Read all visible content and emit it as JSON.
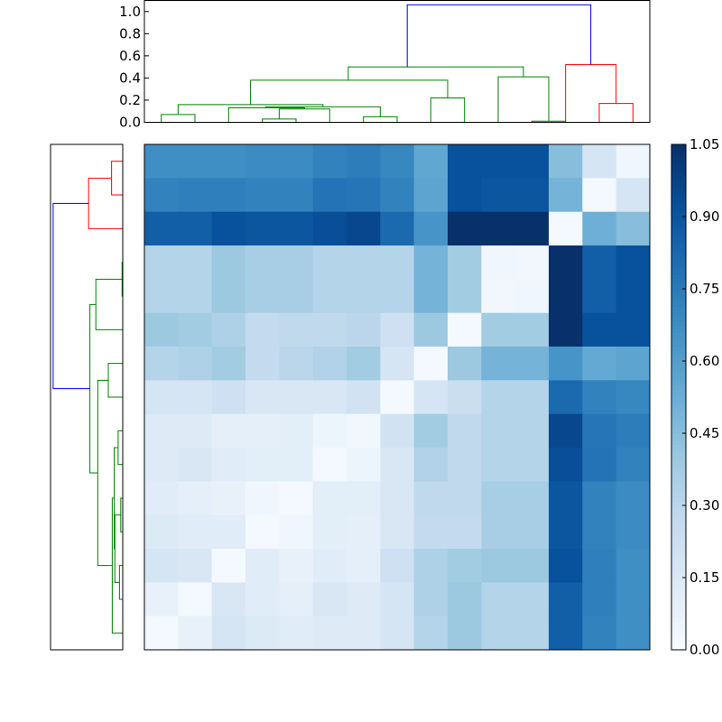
{
  "chart_data": [
    {
      "type": "dendrogram",
      "name": "top-dendrogram",
      "orientation": "top",
      "ylim": [
        0,
        1.1
      ],
      "y_ticks": [
        0.0,
        0.2,
        0.4,
        0.6,
        0.8,
        1.0
      ],
      "y_tick_labels": [
        "0.0",
        "0.2",
        "0.4",
        "0.6",
        "0.8",
        "1.0"
      ],
      "leaf_count": 15,
      "colors": {
        "green": "#008000",
        "red": "#ff0000",
        "blue": "#0000ff"
      },
      "links": [
        {
          "x": [
            0.5,
            0.5,
            1.5,
            1.5
          ],
          "y": [
            0,
            0.07,
            0.07,
            0
          ],
          "color": "green"
        },
        {
          "x": [
            3.5,
            3.5,
            4.5,
            4.5
          ],
          "y": [
            0,
            0.03,
            0.03,
            0
          ],
          "color": "green"
        },
        {
          "x": [
            4.0,
            4.0,
            5.5,
            5.5
          ],
          "y": [
            0.03,
            0.12,
            0.12,
            0
          ],
          "color": "green"
        },
        {
          "x": [
            2.5,
            2.5,
            4.75,
            4.75
          ],
          "y": [
            0,
            0.13,
            0.13,
            0.12
          ],
          "color": "green"
        },
        {
          "x": [
            6.5,
            6.5,
            7.5,
            7.5
          ],
          "y": [
            0,
            0.05,
            0.05,
            0
          ],
          "color": "green"
        },
        {
          "x": [
            3.6,
            3.6,
            7.0,
            7.0
          ],
          "y": [
            0.13,
            0.14,
            0.14,
            0.05
          ],
          "color": "green"
        },
        {
          "x": [
            1.0,
            1.0,
            5.3,
            5.3
          ],
          "y": [
            0.07,
            0.16,
            0.16,
            0.14
          ],
          "color": "green"
        },
        {
          "x": [
            8.5,
            8.5,
            9.5,
            9.5
          ],
          "y": [
            0,
            0.22,
            0.22,
            0
          ],
          "color": "green"
        },
        {
          "x": [
            3.15,
            3.15,
            9.0,
            9.0
          ],
          "y": [
            0.16,
            0.38,
            0.38,
            0.22
          ],
          "color": "green"
        },
        {
          "x": [
            11.5,
            11.5,
            12.5,
            12.5
          ],
          "y": [
            0,
            0.01,
            0.01,
            0
          ],
          "color": "green"
        },
        {
          "x": [
            10.5,
            10.5,
            12.0,
            12.0
          ],
          "y": [
            0,
            0.41,
            0.41,
            0.01
          ],
          "color": "green"
        },
        {
          "x": [
            6.05,
            6.05,
            11.25,
            11.25
          ],
          "y": [
            0.38,
            0.5,
            0.5,
            0.41
          ],
          "color": "green"
        },
        {
          "x": [
            13.5,
            13.5,
            14.5,
            14.5
          ],
          "y": [
            0,
            0.17,
            0.17,
            0
          ],
          "color": "red"
        },
        {
          "x": [
            12.5,
            12.5,
            14.0,
            14.0
          ],
          "y": [
            0,
            0.52,
            0.52,
            0.17
          ],
          "color": "red"
        },
        {
          "x": [
            7.8,
            7.8,
            13.25,
            13.25
          ],
          "y": [
            0.5,
            1.06,
            1.06,
            0.52
          ],
          "color": "blue"
        }
      ]
    },
    {
      "type": "dendrogram",
      "name": "left-dendrogram",
      "orientation": "left",
      "xlim": [
        0,
        1.1
      ],
      "leaf_count": 15,
      "colors": {
        "green": "#008000",
        "red": "#ff0000",
        "blue": "#0000ff"
      },
      "links": [
        {
          "y": [
            0.5,
            0.5,
            1.5,
            1.5
          ],
          "x": [
            0,
            0.17,
            0.17,
            0
          ],
          "color": "red"
        },
        {
          "y": [
            1.0,
            1.0,
            2.5,
            2.5
          ],
          "x": [
            0.17,
            0.52,
            0.52,
            0
          ],
          "color": "red"
        },
        {
          "y": [
            3.5,
            3.5,
            4.5,
            4.5
          ],
          "x": [
            0,
            0.01,
            0.01,
            0
          ],
          "color": "green"
        },
        {
          "y": [
            4.0,
            4.0,
            5.5,
            5.5
          ],
          "x": [
            0.01,
            0.41,
            0.41,
            0
          ],
          "color": "green"
        },
        {
          "y": [
            6.5,
            6.5,
            7.5,
            7.5
          ],
          "x": [
            0,
            0.22,
            0.22,
            0
          ],
          "color": "green"
        },
        {
          "y": [
            8.5,
            8.5,
            9.5,
            9.5
          ],
          "x": [
            0,
            0.07,
            0.07,
            0
          ],
          "color": "green"
        },
        {
          "y": [
            10.5,
            10.5,
            11.5,
            11.5
          ],
          "x": [
            0,
            0.03,
            0.03,
            0
          ],
          "color": "green"
        },
        {
          "y": [
            12.5,
            12.5,
            13.5,
            13.5
          ],
          "x": [
            0,
            0.05,
            0.05,
            0
          ],
          "color": "green"
        },
        {
          "y": [
            11.0,
            11.0,
            13.0,
            13.0
          ],
          "x": [
            0.03,
            0.12,
            0.12,
            0.05
          ],
          "color": "green"
        },
        {
          "y": [
            9.0,
            9.0,
            12.0,
            12.0
          ],
          "x": [
            0.07,
            0.13,
            0.13,
            0.12
          ],
          "color": "green"
        },
        {
          "y": [
            10.5,
            10.5,
            14.5,
            14.5
          ],
          "x": [
            0.13,
            0.16,
            0.16,
            0
          ],
          "color": "green"
        },
        {
          "y": [
            7.0,
            7.0,
            12.5,
            12.5
          ],
          "x": [
            0.22,
            0.38,
            0.38,
            0.16
          ],
          "color": "green"
        },
        {
          "y": [
            4.75,
            4.75,
            9.75,
            9.75
          ],
          "x": [
            0.41,
            0.5,
            0.5,
            0.38
          ],
          "color": "green"
        },
        {
          "y": [
            1.75,
            1.75,
            7.25,
            7.25
          ],
          "x": [
            0.52,
            1.06,
            1.06,
            0.5
          ],
          "color": "blue"
        }
      ]
    },
    {
      "type": "heatmap",
      "name": "distance-heatmap",
      "colormap": "Blues",
      "vmin": 0.0,
      "vmax": 1.05,
      "values": [
        [
          0.67,
          0.67,
          0.67,
          0.68,
          0.68,
          0.72,
          0.74,
          0.7,
          0.56,
          0.92,
          0.92,
          0.92,
          0.45,
          0.18,
          0.04
        ],
        [
          0.72,
          0.73,
          0.73,
          0.72,
          0.72,
          0.78,
          0.77,
          0.72,
          0.57,
          0.92,
          0.9,
          0.9,
          0.5,
          0.02,
          0.18
        ],
        [
          0.86,
          0.86,
          0.92,
          0.9,
          0.9,
          0.93,
          0.96,
          0.82,
          0.64,
          1.05,
          1.05,
          1.05,
          0.02,
          0.52,
          0.45
        ],
        [
          0.32,
          0.32,
          0.4,
          0.36,
          0.36,
          0.32,
          0.32,
          0.32,
          0.5,
          0.38,
          0.04,
          0.03,
          1.05,
          0.86,
          0.92
        ],
        [
          0.32,
          0.32,
          0.4,
          0.36,
          0.36,
          0.32,
          0.32,
          0.32,
          0.5,
          0.38,
          0.03,
          0.04,
          1.05,
          0.86,
          0.92
        ],
        [
          0.4,
          0.38,
          0.34,
          0.27,
          0.28,
          0.28,
          0.3,
          0.22,
          0.4,
          0.02,
          0.38,
          0.38,
          1.05,
          0.92,
          0.92
        ],
        [
          0.32,
          0.34,
          0.38,
          0.27,
          0.3,
          0.33,
          0.38,
          0.18,
          0.02,
          0.4,
          0.5,
          0.5,
          0.64,
          0.55,
          0.57
        ],
        [
          0.18,
          0.18,
          0.22,
          0.16,
          0.16,
          0.16,
          0.2,
          0.02,
          0.18,
          0.24,
          0.32,
          0.32,
          0.82,
          0.72,
          0.7
        ],
        [
          0.13,
          0.13,
          0.1,
          0.1,
          0.11,
          0.05,
          0.03,
          0.2,
          0.38,
          0.28,
          0.32,
          0.32,
          0.96,
          0.77,
          0.74
        ],
        [
          0.13,
          0.16,
          0.12,
          0.11,
          0.11,
          0.02,
          0.05,
          0.16,
          0.33,
          0.28,
          0.32,
          0.32,
          0.93,
          0.78,
          0.72
        ],
        [
          0.12,
          0.1,
          0.08,
          0.04,
          0.02,
          0.11,
          0.11,
          0.16,
          0.28,
          0.28,
          0.36,
          0.36,
          0.9,
          0.72,
          0.68
        ],
        [
          0.14,
          0.12,
          0.12,
          0.02,
          0.04,
          0.11,
          0.1,
          0.16,
          0.27,
          0.27,
          0.36,
          0.36,
          0.9,
          0.72,
          0.68
        ],
        [
          0.18,
          0.16,
          0.02,
          0.12,
          0.08,
          0.12,
          0.1,
          0.22,
          0.34,
          0.38,
          0.4,
          0.4,
          0.92,
          0.73,
          0.67
        ],
        [
          0.08,
          0.02,
          0.16,
          0.12,
          0.1,
          0.16,
          0.13,
          0.18,
          0.34,
          0.4,
          0.32,
          0.32,
          0.86,
          0.73,
          0.67
        ],
        [
          0.02,
          0.08,
          0.18,
          0.14,
          0.12,
          0.13,
          0.13,
          0.18,
          0.32,
          0.4,
          0.32,
          0.32,
          0.86,
          0.72,
          0.67
        ]
      ]
    },
    {
      "type": "colorbar",
      "name": "colorbar",
      "colormap": "Blues",
      "range": [
        0.0,
        1.05
      ],
      "ticks": [
        0.0,
        0.15,
        0.3,
        0.45,
        0.6,
        0.75,
        0.9,
        1.05
      ],
      "tick_labels": [
        "0.00",
        "0.15",
        "0.30",
        "0.45",
        "0.60",
        "0.75",
        "0.90",
        "1.05"
      ]
    }
  ]
}
